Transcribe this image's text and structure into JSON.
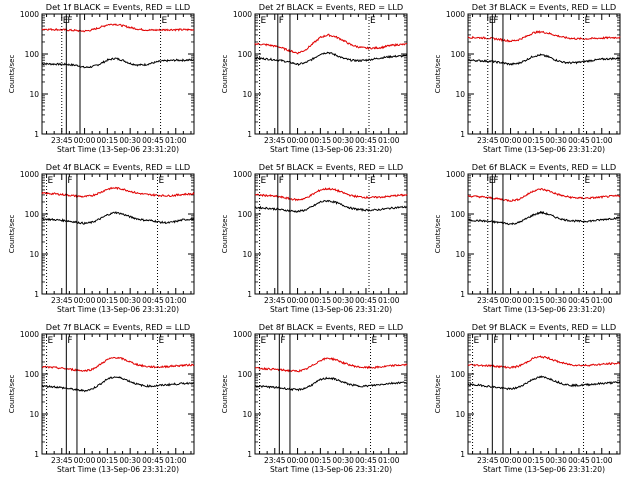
{
  "figure": {
    "background": "#ffffff",
    "axis_color": "#000000",
    "events_color": "#000000",
    "lld_color": "#e00000"
  },
  "chart_data": [
    {
      "type": "line",
      "title": "Det 1f BLACK = Events, RED = LLD",
      "xlabel": "Start Time (13-Sep-06 23:31:20)",
      "ylabel": "Counts/sec",
      "yscale": "log",
      "ylim": [
        1,
        1000
      ],
      "xlim": [
        "23:32",
        "01:12"
      ],
      "x_ticks": [
        "23:45",
        "00:00",
        "00:15",
        "00:30",
        "00:45",
        "01:00"
      ],
      "y_ticks": [
        "1",
        "10",
        "100",
        "1000"
      ],
      "markers": [
        {
          "label": "E",
          "time": "23:45",
          "style": "dotted"
        },
        {
          "label": "F",
          "time": "23:48",
          "style": "solid"
        },
        {
          "label": "",
          "time": "23:57",
          "style": "solid"
        },
        {
          "label": "E",
          "time": "00:50",
          "style": "dotted"
        }
      ],
      "x": [
        "23:32",
        "23:40",
        "23:48",
        "23:55",
        "00:00",
        "00:05",
        "00:10",
        "00:15",
        "00:20",
        "00:25",
        "00:30",
        "00:35",
        "00:40",
        "00:45",
        "00:50",
        "00:55",
        "01:00",
        "01:05",
        "01:12"
      ],
      "series": [
        {
          "name": "Events",
          "color": "#000000",
          "values": [
            57,
            56,
            55,
            52,
            46,
            48,
            56,
            70,
            78,
            70,
            58,
            53,
            54,
            60,
            66,
            68,
            70,
            70,
            71
          ]
        },
        {
          "name": "LLD",
          "color": "#e00000",
          "values": [
            420,
            410,
            400,
            385,
            372,
            400,
            460,
            540,
            560,
            510,
            460,
            420,
            400,
            395,
            400,
            405,
            405,
            405,
            405
          ]
        }
      ]
    },
    {
      "type": "line",
      "title": "Det 2f BLACK = Events, RED = LLD",
      "xlabel": "Start Time (13-Sep-06 23:31:20)",
      "ylabel": "Counts/sec",
      "yscale": "log",
      "ylim": [
        1,
        1000
      ],
      "xlim": [
        "23:32",
        "01:12"
      ],
      "x_ticks": [
        "23:45",
        "00:00",
        "00:15",
        "00:30",
        "00:45",
        "01:00"
      ],
      "y_ticks": [
        "1",
        "10",
        "100",
        "1000"
      ],
      "markers": [
        {
          "label": "E",
          "time": "23:35",
          "style": "dotted"
        },
        {
          "label": "F",
          "time": "23:47",
          "style": "solid"
        },
        {
          "label": "",
          "time": "23:55",
          "style": "solid"
        },
        {
          "label": "E",
          "time": "00:47",
          "style": "dotted"
        }
      ],
      "x": [
        "23:32",
        "23:40",
        "23:48",
        "23:55",
        "00:00",
        "00:05",
        "00:10",
        "00:15",
        "00:20",
        "00:25",
        "00:30",
        "00:35",
        "00:40",
        "00:45",
        "00:50",
        "00:55",
        "01:00",
        "01:05",
        "01:12"
      ],
      "series": [
        {
          "name": "Events",
          "color": "#000000",
          "values": [
            80,
            75,
            70,
            62,
            55,
            60,
            75,
            100,
            110,
            95,
            78,
            70,
            68,
            70,
            75,
            80,
            85,
            88,
            90
          ]
        },
        {
          "name": "LLD",
          "color": "#e00000",
          "values": [
            180,
            170,
            150,
            120,
            105,
            125,
            180,
            260,
            300,
            270,
            220,
            170,
            150,
            140,
            140,
            145,
            160,
            170,
            175
          ]
        }
      ]
    },
    {
      "type": "line",
      "title": "Det 3f BLACK = Events, RED = LLD",
      "xlabel": "Start Time (13-Sep-06 23:31:20)",
      "ylabel": "Counts/sec",
      "yscale": "log",
      "ylim": [
        1,
        1000
      ],
      "xlim": [
        "23:32",
        "01:12"
      ],
      "x_ticks": [
        "23:45",
        "00:00",
        "00:15",
        "00:30",
        "00:45",
        "01:00"
      ],
      "y_ticks": [
        "1",
        "10",
        "100",
        "1000"
      ],
      "markers": [
        {
          "label": "E",
          "time": "23:45",
          "style": "dotted"
        },
        {
          "label": "F",
          "time": "23:48",
          "style": "solid"
        },
        {
          "label": "",
          "time": "23:55",
          "style": "solid"
        },
        {
          "label": "E",
          "time": "00:48",
          "style": "dotted"
        }
      ],
      "x": [
        "23:32",
        "23:40",
        "23:48",
        "23:55",
        "00:00",
        "00:05",
        "00:10",
        "00:15",
        "00:20",
        "00:25",
        "00:30",
        "00:35",
        "00:40",
        "00:45",
        "00:50",
        "00:55",
        "01:00",
        "01:05",
        "01:12"
      ],
      "series": [
        {
          "name": "Events",
          "color": "#000000",
          "values": [
            70,
            68,
            65,
            60,
            55,
            58,
            70,
            88,
            95,
            85,
            70,
            62,
            60,
            62,
            66,
            70,
            74,
            76,
            78
          ]
        },
        {
          "name": "LLD",
          "color": "#e00000",
          "values": [
            260,
            255,
            245,
            225,
            210,
            225,
            270,
            340,
            360,
            330,
            290,
            260,
            245,
            240,
            240,
            245,
            250,
            255,
            260
          ]
        }
      ]
    },
    {
      "type": "line",
      "title": "Det 4f BLACK = Events, RED = LLD",
      "xlabel": "Start Time (13-Sep-06 23:31:20)",
      "ylabel": "Counts/sec",
      "yscale": "log",
      "ylim": [
        1,
        1000
      ],
      "xlim": [
        "23:32",
        "01:12"
      ],
      "x_ticks": [
        "23:45",
        "00:00",
        "00:15",
        "00:30",
        "00:45",
        "01:00"
      ],
      "y_ticks": [
        "1",
        "10",
        "100",
        "1000"
      ],
      "markers": [
        {
          "label": "E",
          "time": "23:35",
          "style": "dotted"
        },
        {
          "label": "F",
          "time": "23:48",
          "style": "solid"
        },
        {
          "label": "",
          "time": "23:55",
          "style": "solid"
        },
        {
          "label": "E",
          "time": "00:48",
          "style": "dotted"
        }
      ],
      "x": [
        "23:32",
        "23:40",
        "23:48",
        "23:55",
        "00:00",
        "00:05",
        "00:10",
        "00:15",
        "00:20",
        "00:25",
        "00:30",
        "00:35",
        "00:40",
        "00:45",
        "00:50",
        "00:55",
        "01:00",
        "01:05",
        "01:12"
      ],
      "series": [
        {
          "name": "Events",
          "color": "#000000",
          "values": [
            75,
            72,
            68,
            62,
            58,
            62,
            75,
            95,
            110,
            100,
            85,
            75,
            70,
            68,
            62,
            60,
            65,
            72,
            75
          ]
        },
        {
          "name": "LLD",
          "color": "#e00000",
          "values": [
            330,
            320,
            300,
            280,
            270,
            290,
            340,
            420,
            450,
            420,
            370,
            330,
            310,
            300,
            290,
            285,
            295,
            310,
            320
          ]
        }
      ]
    },
    {
      "type": "line",
      "title": "Det 5f BLACK = Events, RED = LLD",
      "xlabel": "Start Time (13-Sep-06 23:31:20)",
      "ylabel": "Counts/sec",
      "yscale": "log",
      "ylim": [
        1,
        1000
      ],
      "xlim": [
        "23:32",
        "01:12"
      ],
      "x_ticks": [
        "23:45",
        "00:00",
        "00:15",
        "00:30",
        "00:45",
        "01:00"
      ],
      "y_ticks": [
        "1",
        "10",
        "100",
        "1000"
      ],
      "markers": [
        {
          "label": "E",
          "time": "23:35",
          "style": "dotted"
        },
        {
          "label": "F",
          "time": "23:47",
          "style": "solid"
        },
        {
          "label": "",
          "time": "23:55",
          "style": "solid"
        },
        {
          "label": "E",
          "time": "00:47",
          "style": "dotted"
        }
      ],
      "x": [
        "23:32",
        "23:40",
        "23:48",
        "23:55",
        "00:00",
        "00:05",
        "00:10",
        "00:15",
        "00:20",
        "00:25",
        "00:30",
        "00:35",
        "00:40",
        "00:45",
        "00:50",
        "00:55",
        "01:00",
        "01:05",
        "01:12"
      ],
      "series": [
        {
          "name": "Events",
          "color": "#000000",
          "values": [
            145,
            140,
            130,
            120,
            115,
            125,
            155,
            200,
            215,
            195,
            165,
            140,
            130,
            125,
            125,
            130,
            138,
            145,
            150
          ]
        },
        {
          "name": "LLD",
          "color": "#e00000",
          "values": [
            300,
            290,
            270,
            240,
            225,
            245,
            310,
            400,
            430,
            400,
            340,
            290,
            270,
            260,
            260,
            265,
            275,
            290,
            300
          ]
        }
      ]
    },
    {
      "type": "line",
      "title": "Det 6f BLACK = Events, RED = LLD",
      "xlabel": "Start Time (13-Sep-06 23:31:20)",
      "ylabel": "Counts/sec",
      "yscale": "log",
      "ylim": [
        1,
        1000
      ],
      "xlim": [
        "23:32",
        "01:12"
      ],
      "x_ticks": [
        "23:45",
        "00:00",
        "00:15",
        "00:30",
        "00:45",
        "01:00"
      ],
      "y_ticks": [
        "1",
        "10",
        "100",
        "1000"
      ],
      "markers": [
        {
          "label": "E",
          "time": "23:45",
          "style": "dotted"
        },
        {
          "label": "F",
          "time": "23:48",
          "style": "solid"
        },
        {
          "label": "",
          "time": "23:55",
          "style": "solid"
        },
        {
          "label": "E",
          "time": "00:48",
          "style": "dotted"
        }
      ],
      "x": [
        "23:32",
        "23:40",
        "23:48",
        "23:55",
        "00:00",
        "00:05",
        "00:10",
        "00:15",
        "00:20",
        "00:25",
        "00:30",
        "00:35",
        "00:40",
        "00:45",
        "00:50",
        "00:55",
        "01:00",
        "01:05",
        "01:12"
      ],
      "series": [
        {
          "name": "Events",
          "color": "#000000",
          "values": [
            70,
            68,
            64,
            60,
            56,
            60,
            75,
            95,
            110,
            98,
            82,
            72,
            68,
            66,
            66,
            68,
            72,
            76,
            80
          ]
        },
        {
          "name": "LLD",
          "color": "#e00000",
          "values": [
            280,
            270,
            250,
            230,
            215,
            230,
            290,
            380,
            420,
            380,
            320,
            280,
            260,
            250,
            250,
            255,
            265,
            275,
            285
          ]
        }
      ]
    },
    {
      "type": "line",
      "title": "Det 7f BLACK = Events, RED = LLD",
      "xlabel": "Start Time (13-Sep-06 23:31:20)",
      "ylabel": "Counts/sec",
      "yscale": "log",
      "ylim": [
        1,
        1000
      ],
      "xlim": [
        "23:32",
        "01:12"
      ],
      "x_ticks": [
        "23:45",
        "00:00",
        "00:15",
        "00:30",
        "00:45",
        "01:00"
      ],
      "y_ticks": [
        "1",
        "10",
        "100",
        "1000"
      ],
      "markers": [
        {
          "label": "E",
          "time": "23:35",
          "style": "dotted"
        },
        {
          "label": "F",
          "time": "23:48",
          "style": "solid"
        },
        {
          "label": "",
          "time": "23:55",
          "style": "solid"
        },
        {
          "label": "E",
          "time": "00:48",
          "style": "dotted"
        }
      ],
      "x": [
        "23:32",
        "23:40",
        "23:48",
        "23:55",
        "00:00",
        "00:05",
        "00:10",
        "00:15",
        "00:20",
        "00:25",
        "00:30",
        "00:35",
        "00:40",
        "00:45",
        "00:50",
        "00:55",
        "01:00",
        "01:05",
        "01:12"
      ],
      "series": [
        {
          "name": "Events",
          "color": "#000000",
          "values": [
            50,
            48,
            44,
            40,
            38,
            42,
            55,
            75,
            85,
            78,
            65,
            55,
            50,
            50,
            52,
            54,
            56,
            58,
            60
          ]
        },
        {
          "name": "LLD",
          "color": "#e00000",
          "values": [
            150,
            145,
            135,
            125,
            120,
            130,
            170,
            230,
            260,
            240,
            200,
            170,
            155,
            150,
            150,
            155,
            160,
            165,
            170
          ]
        }
      ]
    },
    {
      "type": "line",
      "title": "Det 8f BLACK = Events, RED = LLD",
      "xlabel": "Start Time (13-Sep-06 23:31:20)",
      "ylabel": "Counts/sec",
      "yscale": "log",
      "ylim": [
        1,
        1000
      ],
      "xlim": [
        "23:32",
        "01:12"
      ],
      "x_ticks": [
        "23:45",
        "00:00",
        "00:15",
        "00:30",
        "00:45",
        "01:00"
      ],
      "y_ticks": [
        "1",
        "10",
        "100",
        "1000"
      ],
      "markers": [
        {
          "label": "E",
          "time": "23:35",
          "style": "dotted"
        },
        {
          "label": "F",
          "time": "23:48",
          "style": "solid"
        },
        {
          "label": "",
          "time": "23:55",
          "style": "solid"
        },
        {
          "label": "E",
          "time": "00:48",
          "style": "dotted"
        }
      ],
      "x": [
        "23:32",
        "23:40",
        "23:48",
        "23:55",
        "00:00",
        "00:05",
        "00:10",
        "00:15",
        "00:20",
        "00:25",
        "00:30",
        "00:35",
        "00:40",
        "00:45",
        "00:50",
        "00:55",
        "01:00",
        "01:05",
        "01:12"
      ],
      "series": [
        {
          "name": "Events",
          "color": "#000000",
          "values": [
            50,
            48,
            45,
            42,
            40,
            44,
            55,
            72,
            80,
            74,
            62,
            54,
            50,
            50,
            52,
            55,
            58,
            60,
            62
          ]
        },
        {
          "name": "LLD",
          "color": "#e00000",
          "values": [
            140,
            135,
            128,
            120,
            118,
            128,
            165,
            220,
            250,
            230,
            190,
            165,
            150,
            145,
            145,
            150,
            158,
            165,
            170
          ]
        }
      ]
    },
    {
      "type": "line",
      "title": "Det 9f BLACK = Events, RED = LLD",
      "xlabel": "Start Time (13-Sep-06 23:31:20)",
      "ylabel": "Counts/sec",
      "yscale": "log",
      "ylim": [
        1,
        1000
      ],
      "xlim": [
        "23:32",
        "01:12"
      ],
      "x_ticks": [
        "23:45",
        "00:00",
        "00:15",
        "00:30",
        "00:45",
        "01:00"
      ],
      "y_ticks": [
        "1",
        "10",
        "100",
        "1000"
      ],
      "markers": [
        {
          "label": "E",
          "time": "23:35",
          "style": "dotted"
        },
        {
          "label": "F",
          "time": "23:48",
          "style": "solid"
        },
        {
          "label": "",
          "time": "23:55",
          "style": "solid"
        },
        {
          "label": "E",
          "time": "00:48",
          "style": "dotted"
        }
      ],
      "x": [
        "23:32",
        "23:40",
        "23:48",
        "23:55",
        "00:00",
        "00:05",
        "00:10",
        "00:15",
        "00:20",
        "00:25",
        "00:30",
        "00:35",
        "00:40",
        "00:45",
        "00:50",
        "00:55",
        "01:00",
        "01:05",
        "01:12"
      ],
      "series": [
        {
          "name": "Events",
          "color": "#000000",
          "values": [
            55,
            52,
            48,
            44,
            42,
            46,
            58,
            75,
            85,
            78,
            65,
            56,
            52,
            52,
            54,
            56,
            58,
            60,
            62
          ]
        },
        {
          "name": "LLD",
          "color": "#e00000",
          "values": [
            170,
            165,
            160,
            150,
            145,
            155,
            190,
            250,
            270,
            250,
            210,
            185,
            170,
            165,
            165,
            170,
            175,
            180,
            185
          ]
        }
      ]
    }
  ]
}
